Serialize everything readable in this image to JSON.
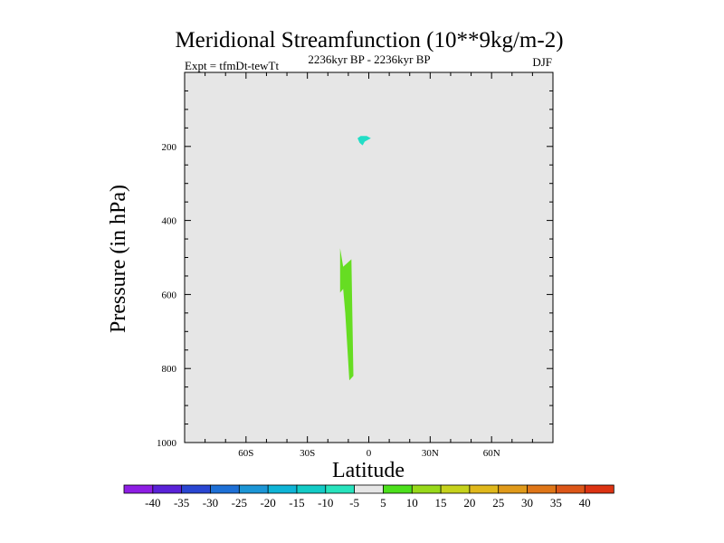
{
  "chart_data": {
    "type": "contour",
    "title": "Meridional Streamfunction (10**9kg/m-2)",
    "subtitle_left": "Expt = tfmDt-tewTt",
    "subtitle_center": "2236kyr BP - 2236kyr BP",
    "subtitle_right": "DJF",
    "xlabel": "Latitude",
    "ylabel": "Pressure (in hPa)",
    "xlim": [
      -90,
      90
    ],
    "ylim": [
      1000,
      0
    ],
    "x_ticks": [
      {
        "value": -60,
        "label": "60S"
      },
      {
        "value": -30,
        "label": "30S"
      },
      {
        "value": 0,
        "label": "0"
      },
      {
        "value": 30,
        "label": "30N"
      },
      {
        "value": 60,
        "label": "60N"
      }
    ],
    "y_ticks": [
      {
        "value": 200,
        "label": "200"
      },
      {
        "value": 400,
        "label": "400"
      },
      {
        "value": 600,
        "label": "600"
      },
      {
        "value": 800,
        "label": "800"
      },
      {
        "value": 1000,
        "label": "1000"
      }
    ],
    "background_color": "#e6e6e6",
    "regions": [
      {
        "name": "cyan-region",
        "level": -10,
        "color": "#22ddc6",
        "points": [
          [
            -4,
            172
          ],
          [
            -1,
            172
          ],
          [
            1,
            178
          ],
          [
            -2,
            187
          ],
          [
            -3,
            197
          ],
          [
            -4.5,
            190
          ],
          [
            -5.5,
            178
          ]
        ]
      },
      {
        "name": "green-region",
        "level": 5,
        "color": "#66dd22",
        "points": [
          [
            -14,
            475
          ],
          [
            -12.5,
            525
          ],
          [
            -8.5,
            505
          ],
          [
            -7.5,
            820
          ],
          [
            -9.5,
            832
          ],
          [
            -11.5,
            650
          ],
          [
            -12.5,
            585
          ],
          [
            -14,
            595
          ]
        ]
      }
    ],
    "colorbar": {
      "labels": [
        "-40",
        "-35",
        "-30",
        "-25",
        "-20",
        "-15",
        "-10",
        "-5",
        "5",
        "10",
        "15",
        "20",
        "25",
        "30",
        "35",
        "40"
      ],
      "colors": [
        "#8e1ee4",
        "#5a22d8",
        "#2a46d2",
        "#1e70d6",
        "#1c96d6",
        "#0fb4d6",
        "#13cbc6",
        "#28e3bd",
        "#e6e6e6",
        "#4ce01c",
        "#98d91a",
        "#c6d21c",
        "#e0b81c",
        "#e09a1a",
        "#df7618",
        "#dc5618",
        "#dc3312"
      ]
    }
  }
}
